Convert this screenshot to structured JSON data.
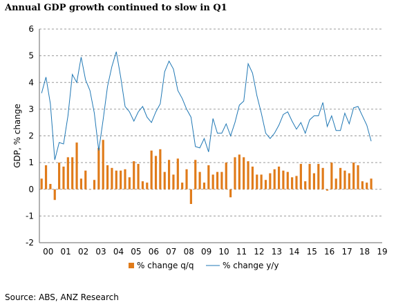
{
  "chart_data": {
    "type": "bar+line",
    "title": "Annual GDP growth continued to slow in Q1",
    "ylabel": "GDP, % change",
    "xlabel": "",
    "ylim": [
      -2,
      6
    ],
    "yticks": [
      -2,
      -1,
      0,
      1,
      2,
      3,
      4,
      5,
      6
    ],
    "xticks": [
      "00",
      "01",
      "02",
      "03",
      "04",
      "05",
      "06",
      "07",
      "08",
      "09",
      "10",
      "11",
      "12",
      "13",
      "14",
      "15",
      "16",
      "17",
      "18",
      "19"
    ],
    "grid": "horizontal-dashed",
    "legend": "bottom-center",
    "start_quarter": "2000 Q1",
    "series": [
      {
        "name": "% change q/q",
        "type": "bar",
        "color": "#E07B1A",
        "values": [
          0.4,
          0.9,
          0.2,
          -0.4,
          1.0,
          0.85,
          1.2,
          1.2,
          1.75,
          0.4,
          0.7,
          0.0,
          0.35,
          1.55,
          1.85,
          0.9,
          0.8,
          0.7,
          0.7,
          0.75,
          0.45,
          1.05,
          0.95,
          0.3,
          0.25,
          1.45,
          1.25,
          1.5,
          0.65,
          1.1,
          0.55,
          1.15,
          0.25,
          0.75,
          -0.55,
          1.1,
          0.65,
          0.25,
          0.9,
          0.55,
          0.65,
          0.65,
          1.0,
          -0.3,
          1.2,
          1.3,
          1.2,
          1.05,
          0.85,
          0.55,
          0.55,
          0.35,
          0.6,
          0.75,
          0.85,
          0.7,
          0.65,
          0.45,
          0.5,
          0.95,
          0.3,
          0.95,
          0.6,
          0.95,
          0.8,
          -0.05,
          1.0,
          0.4,
          0.8,
          0.7,
          0.6,
          1.0,
          0.9,
          0.3,
          0.25,
          0.4
        ]
      },
      {
        "name": "% change y/y",
        "type": "line",
        "color": "#1F77B4",
        "values": [
          3.6,
          4.2,
          3.2,
          1.1,
          1.75,
          1.7,
          2.75,
          4.3,
          4.0,
          4.95,
          4.1,
          3.7,
          2.85,
          1.45,
          2.6,
          3.85,
          4.6,
          5.15,
          4.2,
          3.1,
          2.9,
          2.55,
          2.9,
          3.1,
          2.7,
          2.5,
          2.9,
          3.2,
          4.4,
          4.8,
          4.5,
          3.7,
          3.4,
          3.0,
          2.7,
          1.6,
          1.55,
          1.9,
          1.4,
          2.65,
          2.1,
          2.1,
          2.45,
          2.0,
          2.5,
          3.15,
          3.3,
          4.7,
          4.35,
          3.5,
          2.85,
          2.1,
          1.9,
          2.1,
          2.4,
          2.8,
          2.9,
          2.55,
          2.25,
          2.5,
          2.1,
          2.6,
          2.75,
          2.75,
          3.25,
          2.35,
          2.75,
          2.2,
          2.2,
          2.85,
          2.45,
          3.05,
          3.1,
          2.75,
          2.4,
          1.8
        ]
      }
    ]
  },
  "footer": {
    "source": "Source: ABS, ANZ Research"
  }
}
